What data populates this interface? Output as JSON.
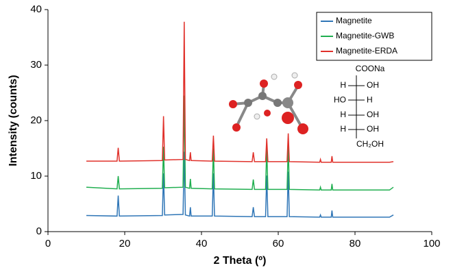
{
  "chart_data": {
    "type": "line",
    "xlabel": "2 Theta (º)",
    "ylabel": "Intensity (counts)",
    "xlim": [
      0,
      100
    ],
    "xticks": [
      0,
      20,
      40,
      60,
      80,
      100
    ],
    "ylim": [
      0,
      40
    ],
    "yticks": [
      0,
      10,
      20,
      30,
      40
    ],
    "legend": "top-right",
    "x": [
      10,
      18.0,
      18.3,
      18.6,
      29.8,
      30.1,
      30.4,
      35.2,
      35.5,
      35.8,
      36.9,
      37.1,
      37.3,
      42.8,
      43.1,
      43.4,
      53.2,
      53.5,
      53.8,
      56.7,
      57.0,
      57.3,
      62.3,
      62.6,
      62.9,
      70.8,
      71.0,
      71.2,
      73.8,
      74.0,
      74.2,
      89,
      90
    ],
    "series": [
      {
        "name": "Magnetite",
        "color": "#2e75b6",
        "values": [
          2.9,
          2.8,
          6.5,
          2.8,
          2.9,
          10.5,
          3.0,
          3.1,
          14.4,
          3.0,
          2.8,
          4.4,
          2.8,
          2.8,
          10.5,
          2.8,
          2.7,
          4.4,
          2.7,
          2.7,
          10.1,
          2.7,
          2.7,
          10.8,
          2.7,
          2.6,
          3.0,
          2.6,
          2.6,
          3.8,
          2.6,
          2.6,
          3.0
        ]
      },
      {
        "name": "Magnetite-GWB",
        "color": "#1fae4f",
        "values": [
          8.0,
          7.7,
          10.0,
          7.7,
          7.8,
          15.3,
          7.9,
          8.0,
          24.5,
          8.0,
          7.8,
          9.5,
          7.8,
          7.7,
          15.0,
          7.7,
          7.6,
          9.4,
          7.6,
          7.6,
          15.1,
          7.6,
          7.6,
          15.6,
          7.6,
          7.5,
          8.0,
          7.5,
          7.5,
          8.6,
          7.5,
          7.5,
          8.0
        ]
      },
      {
        "name": "Magnetite-ERDA",
        "color": "#e0302a",
        "values": [
          12.7,
          12.7,
          15.1,
          12.7,
          12.8,
          20.8,
          12.9,
          13.0,
          37.8,
          13.0,
          12.8,
          14.3,
          12.8,
          12.7,
          17.3,
          12.7,
          12.6,
          14.3,
          12.6,
          12.6,
          16.8,
          12.6,
          12.6,
          17.7,
          12.6,
          12.5,
          13.0,
          12.5,
          12.5,
          13.6,
          12.5,
          12.5,
          12.6
        ]
      }
    ],
    "structure": {
      "top": "COONa",
      "rows": [
        [
          "H",
          "OH"
        ],
        [
          "HO",
          "H"
        ],
        [
          "H",
          "OH"
        ],
        [
          "H",
          "OH"
        ]
      ],
      "bottom": "CH₂OH"
    }
  }
}
